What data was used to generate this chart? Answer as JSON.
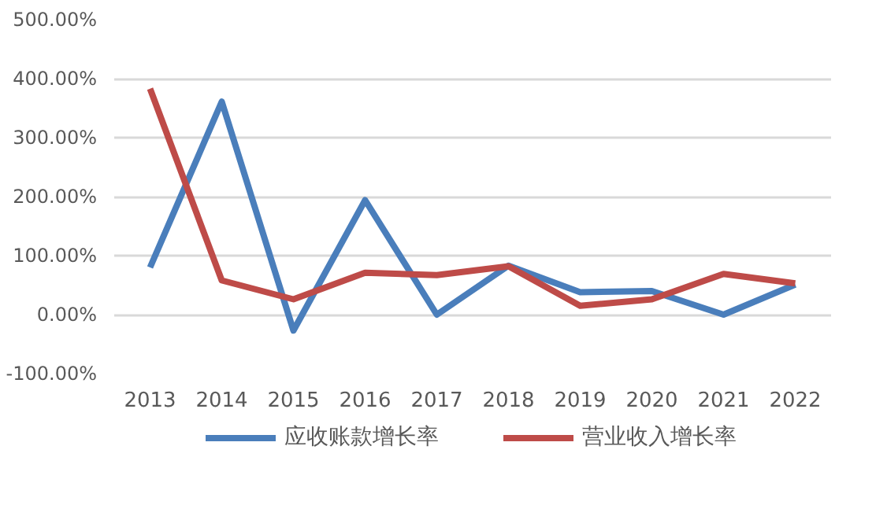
{
  "chart_data": {
    "type": "line",
    "categories": [
      "2013",
      "2014",
      "2015",
      "2016",
      "2017",
      "2018",
      "2019",
      "2020",
      "2021",
      "2022"
    ],
    "series": [
      {
        "name": "应收账款增长率",
        "color": "#4a7ebb",
        "values": [
          80,
          361,
          -27,
          194,
          0,
          83,
          38,
          40,
          0,
          51
        ]
      },
      {
        "name": "营业收入增长率",
        "color": "#be4b48",
        "values": [
          383,
          58,
          26,
          71,
          67,
          82,
          15,
          26,
          69,
          53
        ]
      }
    ],
    "ylim": [
      -100,
      500
    ],
    "yticks": [
      {
        "value": -100,
        "label": "-100.00%"
      },
      {
        "value": 0,
        "label": "0.00%"
      },
      {
        "value": 100,
        "label": "100.00%"
      },
      {
        "value": 200,
        "label": "200.00%"
      },
      {
        "value": 300,
        "label": "300.00%"
      },
      {
        "value": 400,
        "label": "400.00%"
      },
      {
        "value": 500,
        "label": "500.00%"
      }
    ],
    "grid": "y",
    "legend": "bottom",
    "line_style": "solid"
  }
}
